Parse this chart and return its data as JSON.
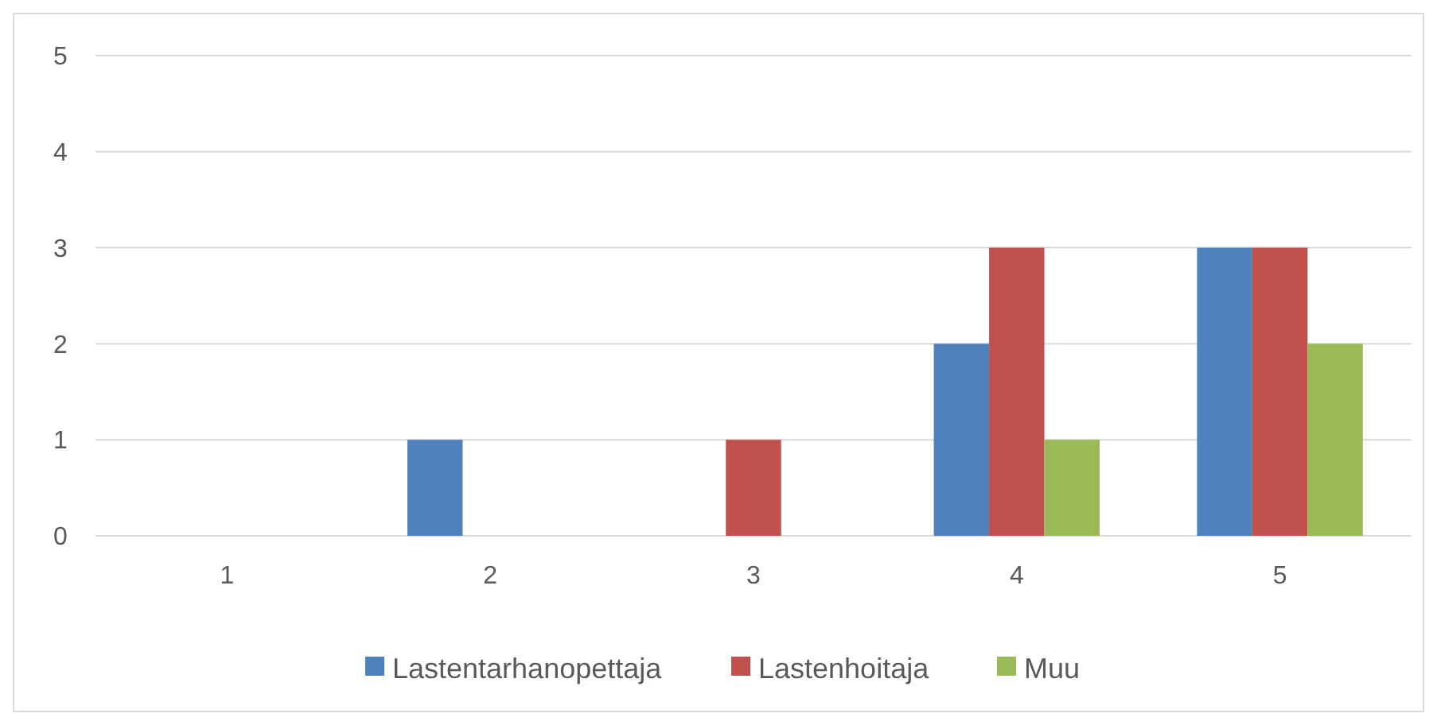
{
  "chart_data": {
    "type": "bar",
    "categories": [
      "1",
      "2",
      "3",
      "4",
      "5"
    ],
    "series": [
      {
        "name": "Lastentarhanopettaja",
        "color": "#4f81bd",
        "values": [
          0,
          1,
          0,
          2,
          3
        ]
      },
      {
        "name": "Lastenhoitaja",
        "color": "#c0504d",
        "values": [
          0,
          0,
          1,
          3,
          3
        ]
      },
      {
        "name": "Muu",
        "color": "#9bbb59",
        "values": [
          0,
          0,
          0,
          1,
          2
        ]
      }
    ],
    "ylim": [
      0,
      5
    ],
    "yticks": [
      0,
      1,
      2,
      3,
      4,
      5
    ],
    "grid": "y",
    "legend": "bottom"
  }
}
